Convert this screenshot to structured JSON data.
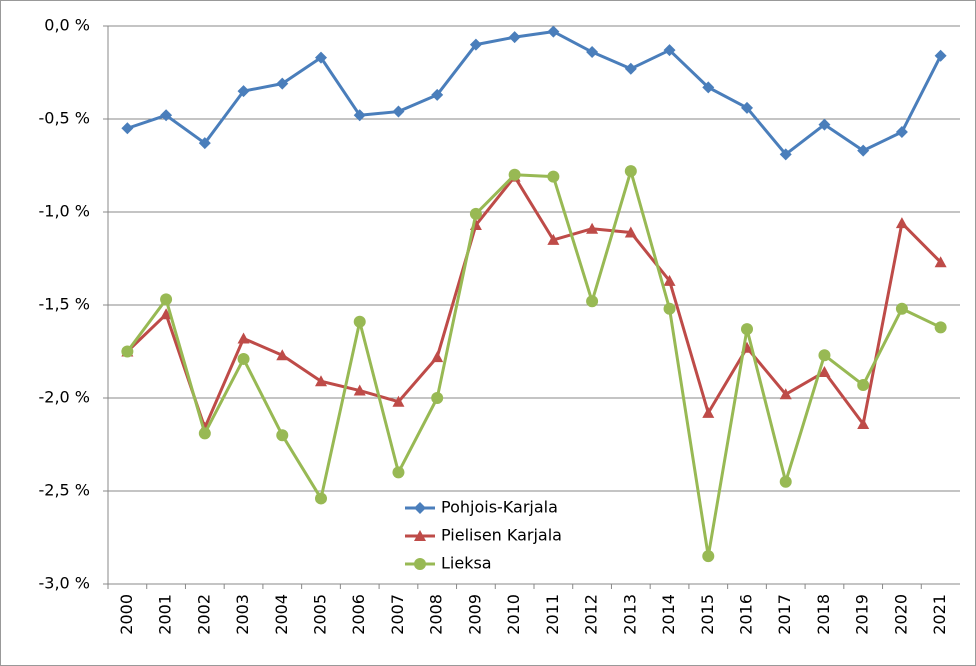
{
  "chart_data": {
    "type": "line",
    "categories": [
      "2000",
      "2001",
      "2002",
      "2003",
      "2004",
      "2005",
      "2006",
      "2007",
      "2008",
      "2009",
      "2010",
      "2011",
      "2012",
      "2013",
      "2014",
      "2015",
      "2016",
      "2017",
      "2018",
      "2019",
      "2020",
      "2021"
    ],
    "series": [
      {
        "name": "Pohjois-Karjala",
        "color": "#4a7ebb",
        "marker": "diamond",
        "values": [
          -0.55,
          -0.48,
          -0.63,
          -0.35,
          -0.31,
          -0.17,
          -0.48,
          -0.46,
          -0.37,
          -0.1,
          -0.06,
          -0.03,
          -0.14,
          -0.23,
          -0.13,
          -0.33,
          -0.44,
          -0.69,
          -0.53,
          -0.67,
          -0.57,
          -0.16
        ]
      },
      {
        "name": "Pielisen Karjala",
        "color": "#be4b48",
        "marker": "triangle",
        "values": [
          -1.75,
          -1.55,
          -2.16,
          -1.68,
          -1.77,
          -1.91,
          -1.96,
          -2.02,
          -1.78,
          -1.07,
          -0.81,
          -1.15,
          -1.09,
          -1.11,
          -1.37,
          -2.08,
          -1.73,
          -1.98,
          -1.86,
          -2.14,
          -1.06,
          -1.27
        ]
      },
      {
        "name": "Lieksa",
        "color": "#98b954",
        "marker": "circle",
        "values": [
          -1.75,
          -1.47,
          -2.19,
          -1.79,
          -2.2,
          -2.54,
          -1.59,
          -2.4,
          -2.0,
          -1.01,
          -0.8,
          -0.81,
          -1.48,
          -0.78,
          -1.52,
          -2.85,
          -1.63,
          -2.45,
          -1.77,
          -1.93,
          -1.52,
          -1.62
        ]
      }
    ],
    "ylim": [
      -3.0,
      0.0
    ],
    "yticks": [
      {
        "value": 0.0,
        "label": "0,0 %"
      },
      {
        "value": -0.5,
        "label": "-0,5 %"
      },
      {
        "value": -1.0,
        "label": "-1,0 %"
      },
      {
        "value": -1.5,
        "label": "-1,5 %"
      },
      {
        "value": -2.0,
        "label": "-2,0 %"
      },
      {
        "value": -2.5,
        "label": "-2,5 %"
      },
      {
        "value": -3.0,
        "label": "-3,0 %"
      }
    ],
    "grid": true,
    "legend": "lower center"
  }
}
